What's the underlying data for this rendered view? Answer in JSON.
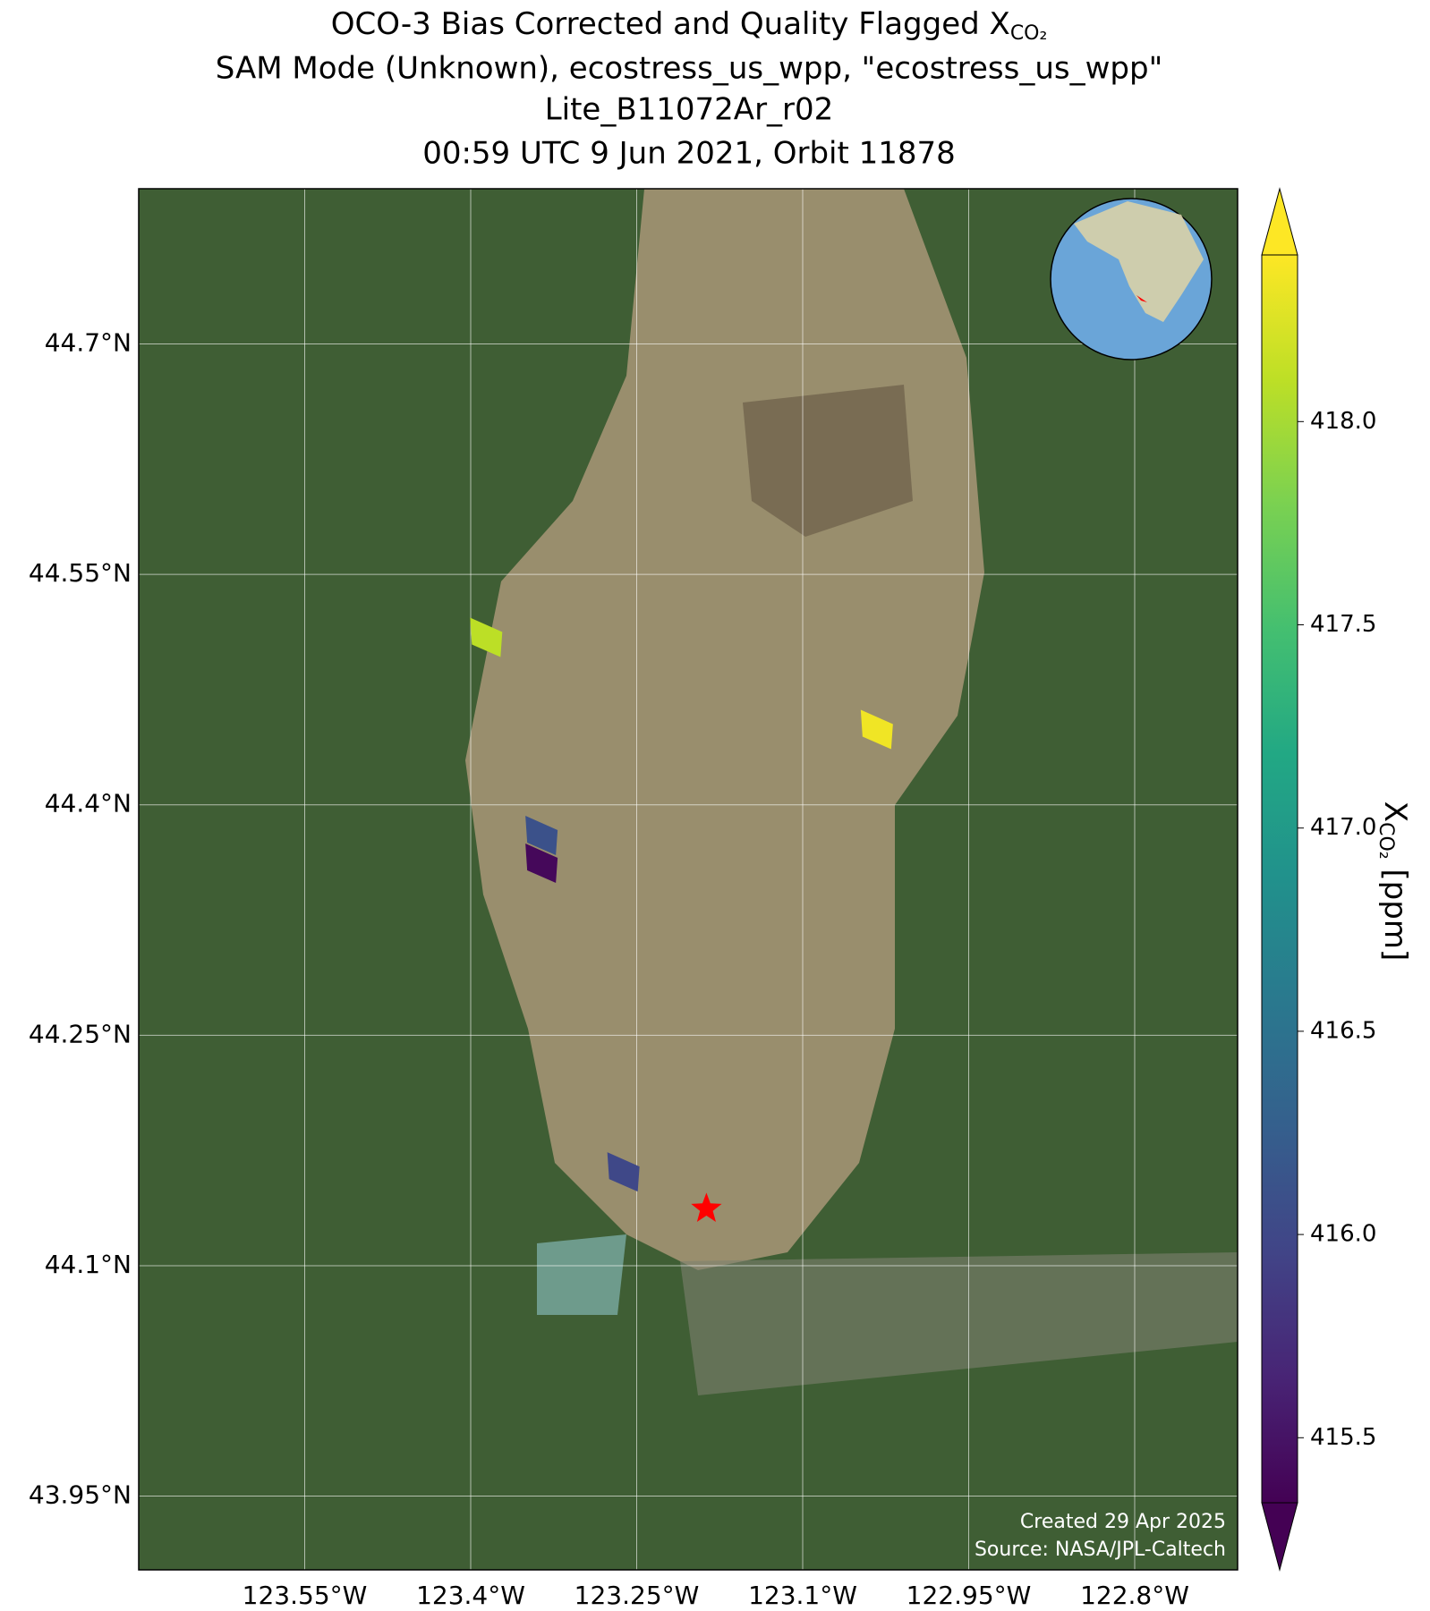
{
  "chart_data": {
    "type": "map",
    "title_lines": [
      {
        "text": "OCO-3 Bias Corrected and Quality Flagged X",
        "sub": "CO₂"
      },
      {
        "text": "SAM Mode (Unknown), ecostress_us_wpp, \"ecostress_us_wpp\""
      },
      {
        "text": "Lite_B11072Ar_r02"
      },
      {
        "text": "00:59 UTC 9 Jun 2021, Orbit 11878"
      }
    ],
    "xlim": [
      -123.7,
      -122.707
    ],
    "ylim": [
      43.902,
      44.801
    ],
    "xticks": [
      {
        "value": -123.55,
        "label": "123.55°W"
      },
      {
        "value": -123.4,
        "label": "123.4°W"
      },
      {
        "value": -123.25,
        "label": "123.25°W"
      },
      {
        "value": -123.1,
        "label": "123.1°W"
      },
      {
        "value": -122.95,
        "label": "122.95°W"
      },
      {
        "value": -122.8,
        "label": "122.8°W"
      }
    ],
    "yticks": [
      {
        "value": 43.95,
        "label": "43.95°N"
      },
      {
        "value": 44.1,
        "label": "44.1°N"
      },
      {
        "value": 44.25,
        "label": "44.25°N"
      },
      {
        "value": 44.4,
        "label": "44.4°N"
      },
      {
        "value": 44.55,
        "label": "44.55°N"
      },
      {
        "value": 44.7,
        "label": "44.7°N"
      }
    ],
    "grid": true,
    "colormap": "viridis",
    "clim": [
      415.34,
      418.41
    ],
    "cticks": [
      {
        "value": 415.5,
        "label": "415.5"
      },
      {
        "value": 416.0,
        "label": "416.0"
      },
      {
        "value": 416.5,
        "label": "416.5"
      },
      {
        "value": 417.0,
        "label": "417.0"
      },
      {
        "value": 417.5,
        "label": "417.5"
      },
      {
        "value": 418.0,
        "label": "418.0"
      }
    ],
    "colorbar_label": {
      "text": "X",
      "sub": "CO₂",
      "unit": " [ppm]"
    },
    "footprints": [
      {
        "lon": -123.386,
        "lat": 44.509,
        "value": 418.1
      },
      {
        "lon": -123.033,
        "lat": 44.449,
        "value": 418.35
      },
      {
        "lon": -123.336,
        "lat": 44.38,
        "value": 416.1
      },
      {
        "lon": -123.336,
        "lat": 44.362,
        "value": 415.4
      },
      {
        "lon": -123.262,
        "lat": 44.161,
        "value": 416.0
      }
    ],
    "target": {
      "lon": -123.187,
      "lat": 44.137
    },
    "credits": [
      "Created 29 Apr 2025",
      "Source: NASA/JPL-Caltech"
    ]
  }
}
